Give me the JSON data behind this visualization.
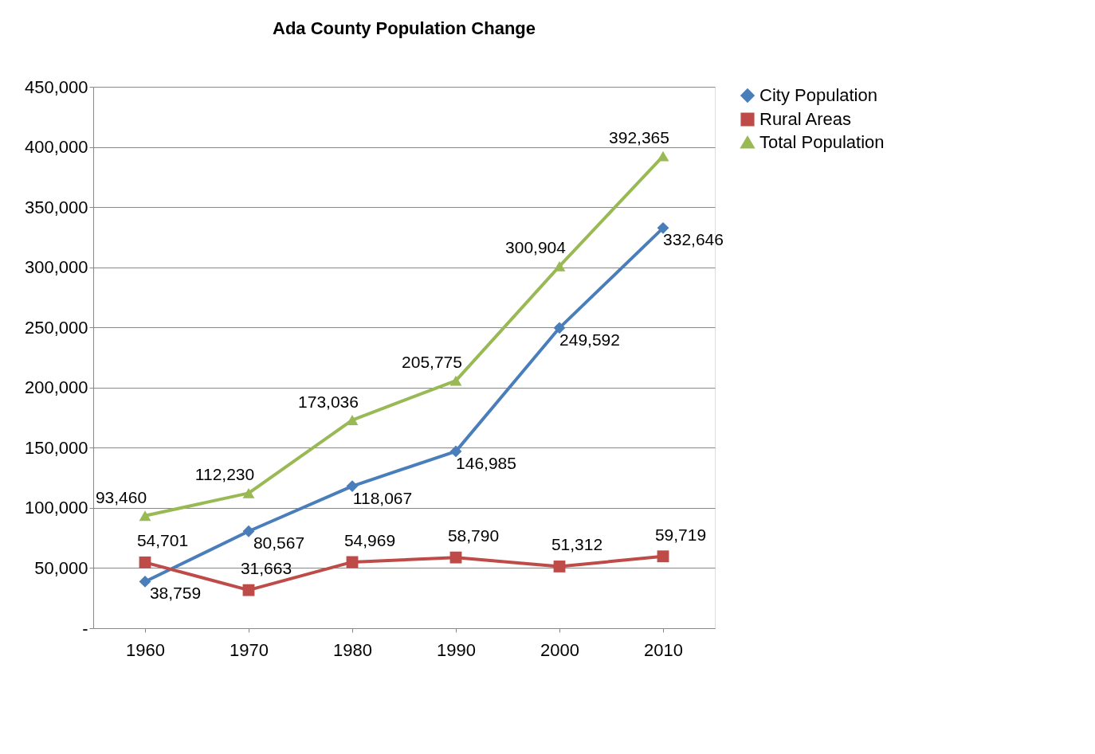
{
  "chart_data": {
    "type": "line",
    "title": "Ada County Population Change",
    "categories": [
      "1960",
      "1970",
      "1980",
      "1990",
      "2000",
      "2010"
    ],
    "series": [
      {
        "name": "City Population",
        "color": "#4a7ebb",
        "marker": "diamond",
        "values": [
          38759,
          80567,
          118067,
          146985,
          249592,
          332646
        ],
        "value_labels": [
          "38,759",
          "80,567",
          "118,067",
          "146,985",
          "249,592",
          "332,646"
        ]
      },
      {
        "name": "Rural Areas",
        "color": "#be4b48",
        "marker": "square",
        "values": [
          54701,
          31663,
          54969,
          58790,
          51312,
          59719
        ],
        "value_labels": [
          "54,701",
          "31,663",
          "54,969",
          "58,790",
          "51,312",
          "59,719"
        ]
      },
      {
        "name": "Total Population",
        "color": "#98b954",
        "marker": "triangle",
        "values": [
          93460,
          112230,
          173036,
          205775,
          300904,
          392365
        ],
        "value_labels": [
          "93,460",
          "112,230",
          "173,036",
          "205,775",
          "300,904",
          "392,365"
        ]
      }
    ],
    "ylim": [
      0,
      450000
    ],
    "yticks": [
      {
        "value": 0,
        "label": "-"
      },
      {
        "value": 50000,
        "label": "50,000"
      },
      {
        "value": 100000,
        "label": "100,000"
      },
      {
        "value": 150000,
        "label": "150,000"
      },
      {
        "value": 200000,
        "label": "200,000"
      },
      {
        "value": 250000,
        "label": "250,000"
      },
      {
        "value": 300000,
        "label": "300,000"
      },
      {
        "value": 350000,
        "label": "350,000"
      },
      {
        "value": 400000,
        "label": "400,000"
      },
      {
        "value": 450000,
        "label": "450,000"
      }
    ],
    "grid": "y",
    "legend": "right"
  }
}
